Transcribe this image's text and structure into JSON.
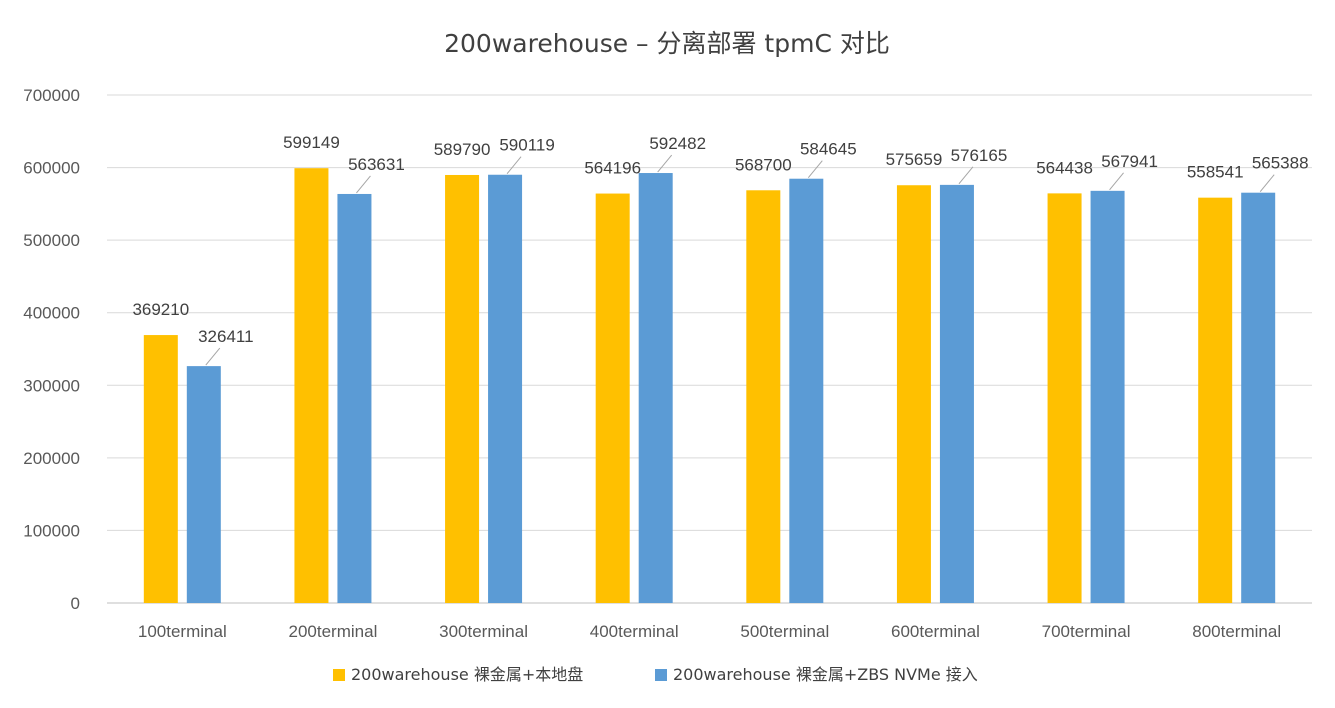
{
  "chart_data": {
    "type": "bar",
    "title": "200warehouse – 分离部署 tpmC 对比",
    "xlabel": "",
    "ylabel": "",
    "ylim": [
      0,
      700000
    ],
    "yticks": [
      0,
      100000,
      200000,
      300000,
      400000,
      500000,
      600000,
      700000
    ],
    "grid": true,
    "legend_position": "bottom",
    "categories": [
      "100terminal",
      "200terminal",
      "300terminal",
      "400terminal",
      "500terminal",
      "600terminal",
      "700terminal",
      "800terminal"
    ],
    "series": [
      {
        "name": "200warehouse 裸金属+本地盘",
        "color": "#FFC000",
        "values": [
          369210,
          599149,
          589790,
          564196,
          568700,
          575659,
          564438,
          558541
        ]
      },
      {
        "name": "200warehouse 裸金属+ZBS NVMe 接入",
        "color": "#5B9BD5",
        "values": [
          326411,
          563631,
          590119,
          592482,
          584645,
          576165,
          567941,
          565388
        ]
      }
    ]
  }
}
